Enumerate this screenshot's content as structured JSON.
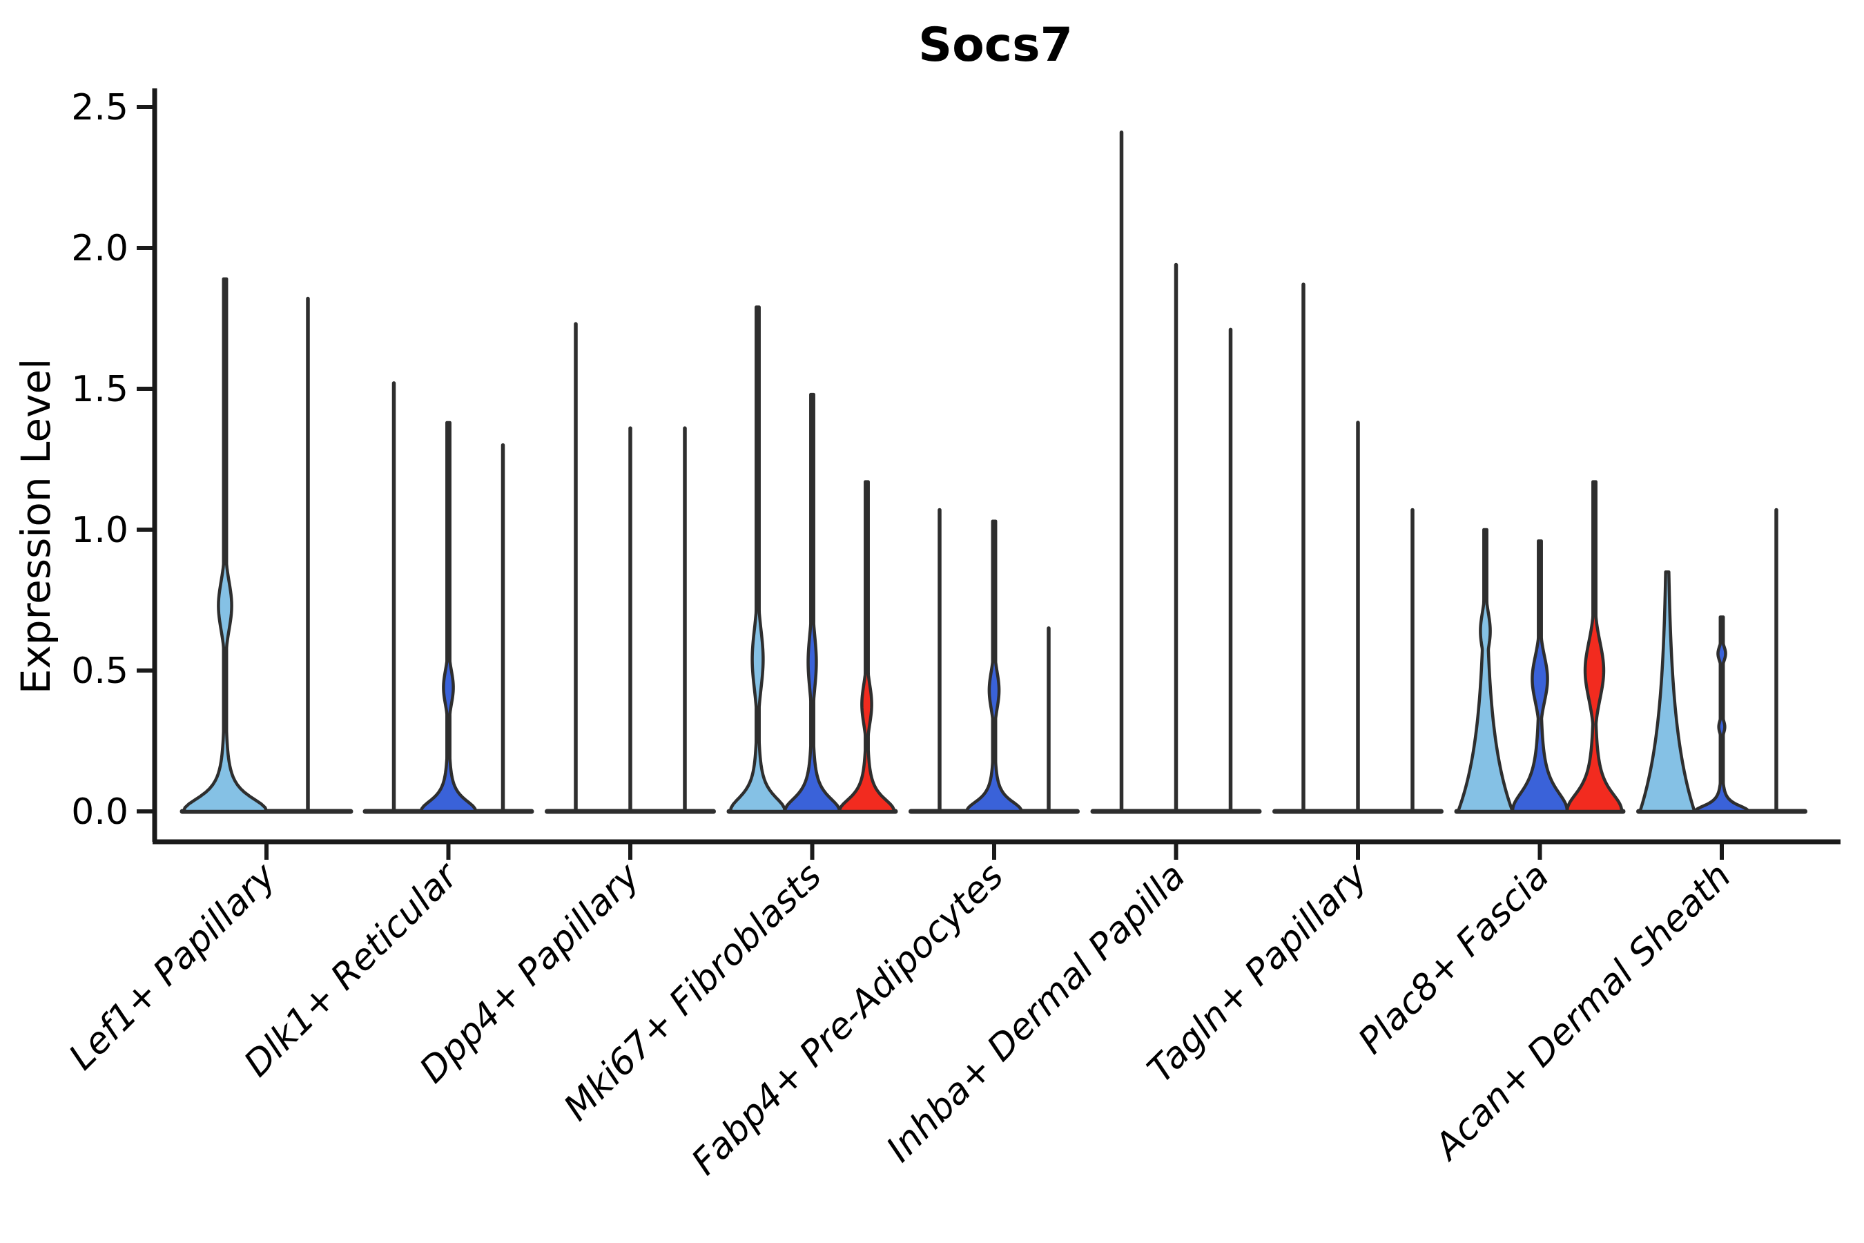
{
  "chart_data": {
    "type": "violin",
    "title": "Socs7",
    "ylabel": "Expression Level",
    "xlabel": "",
    "ylim": [
      0.0,
      2.5
    ],
    "yticks": [
      0.0,
      0.5,
      1.0,
      1.5,
      2.0,
      2.5
    ],
    "ytick_labels": [
      "0.0",
      "0.5",
      "1.0",
      "1.5",
      "2.0",
      "2.5"
    ],
    "grid": false,
    "legend_position": "none",
    "colors": {
      "light_blue": "#85C1E5",
      "royal_blue": "#3A62D9",
      "red": "#F22B1F",
      "stroke": "#2E2E2E",
      "axis": "#1A1A1A"
    },
    "categories": [
      "Lef1+ Papillary",
      "Dlk1+ Reticular",
      "Dpp4+ Papillary",
      "Mki67+ Fibroblasts",
      "Fabp4+ Pre-Adipocytes",
      "Inhba+ Dermal Papilla",
      "Tagln+ Papillary",
      "Plac8+ Fascia",
      "Acan+ Dermal Sheath"
    ],
    "groups": [
      {
        "category": "Lef1+ Papillary",
        "violins": [
          {
            "kind": "violin",
            "color": "light_blue",
            "max": 1.89,
            "bulges": [
              {
                "at": 0.73,
                "span": 0.17,
                "width": 0.16
              }
            ],
            "base": {
              "height": 0.16,
              "width": 1.0,
              "shape": "trumpet"
            }
          },
          {
            "kind": "line",
            "color": "stroke",
            "max": 1.82
          }
        ]
      },
      {
        "category": "Dlk1+ Reticular",
        "violins": [
          {
            "kind": "line",
            "color": "stroke",
            "max": 1.52
          },
          {
            "kind": "violin",
            "color": "royal_blue",
            "max": 1.38,
            "bulges": [
              {
                "at": 0.44,
                "span": 0.12,
                "width": 0.18
              }
            ],
            "base": {
              "height": 0.13,
              "width": 1.0,
              "shape": "trumpet"
            }
          },
          {
            "kind": "line",
            "color": "stroke",
            "max": 1.3
          }
        ]
      },
      {
        "category": "Dpp4+ Papillary",
        "violins": [
          {
            "kind": "line",
            "color": "stroke",
            "max": 1.73
          },
          {
            "kind": "line",
            "color": "stroke",
            "max": 1.36
          },
          {
            "kind": "line",
            "color": "stroke",
            "max": 1.36
          }
        ]
      },
      {
        "category": "Mki67+ Fibroblasts",
        "violins": [
          {
            "kind": "violin",
            "color": "light_blue",
            "max": 1.79,
            "bulges": [
              {
                "at": 0.54,
                "span": 0.21,
                "width": 0.2
              }
            ],
            "base": {
              "height": 0.17,
              "width": 1.0,
              "shape": "trumpet"
            }
          },
          {
            "kind": "violin",
            "color": "royal_blue",
            "max": 1.48,
            "bulges": [
              {
                "at": 0.53,
                "span": 0.19,
                "width": 0.15
              }
            ],
            "base": {
              "height": 0.16,
              "width": 1.0,
              "shape": "trumpet"
            }
          },
          {
            "kind": "violin",
            "color": "red",
            "max": 1.17,
            "bulges": [
              {
                "at": 0.38,
                "span": 0.14,
                "width": 0.18
              }
            ],
            "base": {
              "height": 0.15,
              "width": 1.0,
              "shape": "trumpet"
            }
          }
        ]
      },
      {
        "category": "Fabp4+ Pre-Adipocytes",
        "violins": [
          {
            "kind": "line",
            "color": "stroke",
            "max": 1.07
          },
          {
            "kind": "violin",
            "color": "royal_blue",
            "max": 1.03,
            "bulges": [
              {
                "at": 0.43,
                "span": 0.13,
                "width": 0.18
              }
            ],
            "base": {
              "height": 0.12,
              "width": 1.0,
              "shape": "trumpet"
            }
          },
          {
            "kind": "line",
            "color": "stroke",
            "max": 0.65
          }
        ]
      },
      {
        "category": "Inhba+ Dermal Papilla",
        "violins": [
          {
            "kind": "line",
            "color": "stroke",
            "max": 2.41
          },
          {
            "kind": "line",
            "color": "stroke",
            "max": 1.94
          },
          {
            "kind": "line",
            "color": "stroke",
            "max": 1.71
          }
        ]
      },
      {
        "category": "Tagln+ Papillary",
        "violins": [
          {
            "kind": "line",
            "color": "stroke",
            "max": 1.87
          },
          {
            "kind": "line",
            "color": "stroke",
            "max": 1.38
          },
          {
            "kind": "line",
            "color": "stroke",
            "max": 1.07
          }
        ]
      },
      {
        "category": "Plac8+ Fascia",
        "violins": [
          {
            "kind": "violin",
            "color": "light_blue",
            "max": 1.0,
            "bulges": [
              {
                "at": 0.64,
                "span": 0.13,
                "width": 0.18
              }
            ],
            "base": {
              "height": 0.26,
              "width": 1.0,
              "shape": "cone"
            }
          },
          {
            "kind": "violin",
            "color": "royal_blue",
            "max": 0.96,
            "bulges": [
              {
                "at": 0.47,
                "span": 0.16,
                "width": 0.28
              }
            ],
            "base": {
              "height": 0.24,
              "width": 1.0,
              "shape": "trumpet"
            }
          },
          {
            "kind": "violin",
            "color": "red",
            "max": 1.17,
            "bulges": [
              {
                "at": 0.5,
                "span": 0.2,
                "width": 0.34
              }
            ],
            "base": {
              "height": 0.22,
              "width": 1.0,
              "shape": "trumpet"
            }
          }
        ]
      },
      {
        "category": "Acan+ Dermal Sheath",
        "violins": [
          {
            "kind": "violin",
            "color": "light_blue",
            "max": 0.85,
            "bulges": [],
            "base": {
              "height": 0.3,
              "width": 1.0,
              "shape": "cone"
            }
          },
          {
            "kind": "violin",
            "color": "royal_blue",
            "max": 0.69,
            "bulges": [
              {
                "at": 0.56,
                "span": 0.05,
                "width": 0.14
              },
              {
                "at": 0.3,
                "span": 0.045,
                "width": 0.11
              }
            ],
            "base": {
              "height": 0.07,
              "width": 0.97,
              "shape": "trumpet"
            }
          },
          {
            "kind": "line",
            "color": "stroke",
            "max": 1.07
          }
        ]
      }
    ]
  }
}
